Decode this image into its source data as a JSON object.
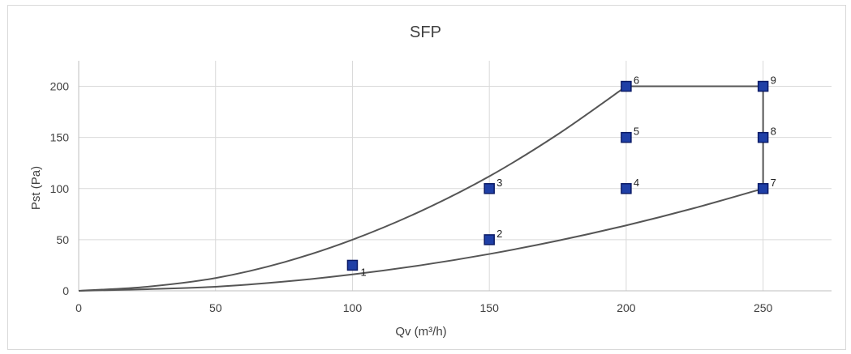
{
  "chart_data": {
    "type": "scatter",
    "title": "SFP",
    "xlabel": "Qv (m³/h)",
    "ylabel": "Pst (Pa)",
    "xlim": [
      0,
      275
    ],
    "ylim": [
      0,
      225
    ],
    "x_ticks": [
      0,
      50,
      100,
      150,
      200,
      250
    ],
    "y_ticks": [
      0,
      50,
      100,
      150,
      200
    ],
    "grid": true,
    "colors": {
      "point": "#1f3fa6",
      "point_edge": "#0a1a66",
      "curve": "#555555",
      "grid": "#d9d9d9"
    },
    "points": [
      {
        "label": "1",
        "x": 100,
        "y": 25
      },
      {
        "label": "2",
        "x": 150,
        "y": 50
      },
      {
        "label": "3",
        "x": 150,
        "y": 100
      },
      {
        "label": "4",
        "x": 200,
        "y": 100
      },
      {
        "label": "5",
        "x": 200,
        "y": 150
      },
      {
        "label": "6",
        "x": 200,
        "y": 200
      },
      {
        "label": "7",
        "x": 250,
        "y": 100
      },
      {
        "label": "8",
        "x": 250,
        "y": 150
      },
      {
        "label": "9",
        "x": 250,
        "y": 200
      }
    ],
    "lines": [
      {
        "points": [
          [
            0,
            0
          ],
          [
            25,
            4
          ],
          [
            50,
            12.5
          ],
          [
            75,
            28
          ],
          [
            100,
            50
          ],
          [
            125,
            78
          ],
          [
            150,
            112
          ],
          [
            175,
            153
          ],
          [
            200,
            200
          ]
        ]
      },
      {
        "points": [
          [
            0,
            0
          ],
          [
            25,
            1.6
          ],
          [
            50,
            4
          ],
          [
            75,
            9
          ],
          [
            100,
            16
          ],
          [
            125,
            25
          ],
          [
            150,
            36
          ],
          [
            175,
            49
          ],
          [
            200,
            64
          ],
          [
            225,
            81
          ],
          [
            250,
            100
          ]
        ]
      },
      {
        "points": [
          [
            200,
            200
          ],
          [
            250,
            200
          ]
        ]
      },
      {
        "points": [
          [
            250,
            200
          ],
          [
            250,
            100
          ]
        ]
      }
    ]
  }
}
